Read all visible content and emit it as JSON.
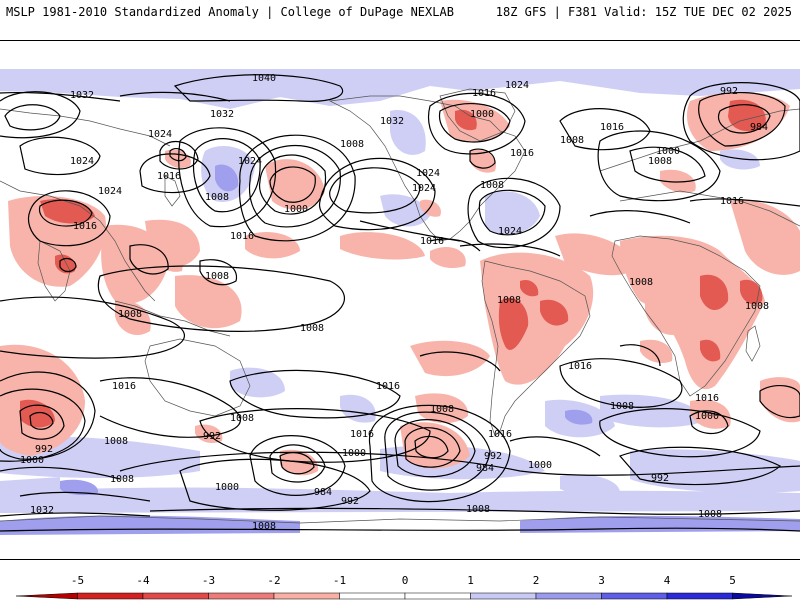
{
  "header": {
    "left": "MSLP 1981-2010 Standardized Anomaly | College of DuPage NEXLAB",
    "right": "18Z GFS | F381 Valid: 15Z TUE DEC 02 2025"
  },
  "isobars": {
    "h1040": "1040",
    "h1032a": "1032",
    "h1032b": "1032",
    "h1032c": "1032",
    "h1032d": "1032",
    "h1024a": "1024",
    "h1024b": "1024",
    "h1024c": "1024",
    "h1024d": "1024",
    "h1024e": "1024",
    "h1024f": "1024",
    "h1024g": "1024",
    "h1024h": "1024",
    "h1016a": "1016",
    "h1016b": "1016",
    "h1016c": "1016",
    "h1016d": "1016",
    "h1016e": "1016",
    "h1016f": "1016",
    "h1016g": "1016",
    "h1016h": "1016",
    "h1016i": "1016",
    "h1016j": "1016",
    "h1016k": "1016",
    "h1016l": "1016",
    "h1016m": "1016",
    "h1016n": "1016",
    "h1008a": "1008",
    "h1008b": "1008",
    "h1008c": "1008",
    "h1008d": "1008",
    "h1008e": "1008",
    "h1008f": "1008",
    "h1008g": "1008",
    "h1008h": "1008",
    "h1008i": "1008",
    "h1008j": "1008",
    "h1008k": "1008",
    "h1008l": "1008",
    "h1008m": "1008",
    "h1008n": "1008",
    "h1008o": "1008",
    "h1008p": "1008",
    "h1008q": "1008",
    "h1008r": "1008",
    "h1008s": "1008",
    "h1000a": "1000",
    "h1000b": "1000",
    "h1000c": "1000",
    "h1000d": "1000",
    "h1000e": "1000",
    "h1000f": "1000",
    "h1000g": "1000",
    "h1000h": "1000",
    "h992a": "992",
    "h992b": "992",
    "h992c": "992",
    "h992d": "992",
    "h992e": "992",
    "h992f": "992",
    "h984a": "984",
    "h984b": "984",
    "h984c": "984"
  },
  "colorbar": {
    "ticks": [
      "-5",
      "-4",
      "-3",
      "-2",
      "-1",
      "0",
      "1",
      "2",
      "3",
      "4",
      "5"
    ],
    "colors": [
      "#b30000",
      "#d42020",
      "#e24a4a",
      "#ee7a7a",
      "#f8b0a5",
      "#ffffff",
      "#ffffff",
      "#c9c9f5",
      "#9b9bee",
      "#5e5ee8",
      "#2a2ad8",
      "#0a0aa0"
    ]
  }
}
